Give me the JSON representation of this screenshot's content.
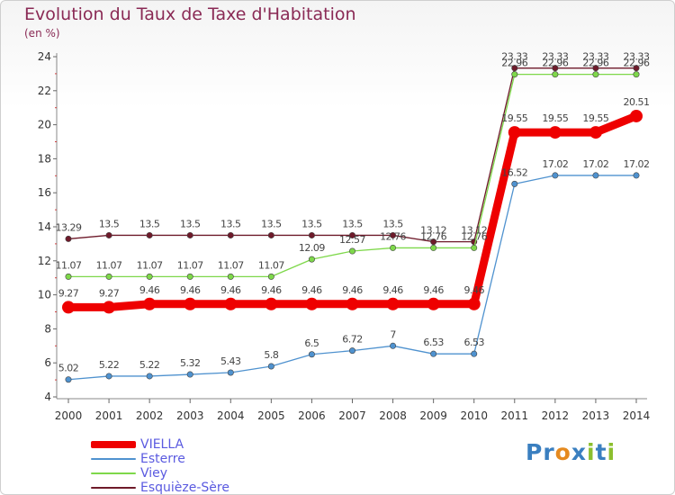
{
  "header": {
    "title": "Evolution du Taux de Taxe d'Habitation",
    "unit": "(en %)"
  },
  "brand": {
    "letters": [
      {
        "char": "P",
        "color": "#3a7fc0"
      },
      {
        "char": "r",
        "color": "#3a7fc0"
      },
      {
        "char": "o",
        "color": "#e58a1f"
      },
      {
        "char": "x",
        "color": "#3a7fc0"
      },
      {
        "char": "i",
        "color": "#8cbf2e"
      },
      {
        "char": "t",
        "color": "#3a7fc0"
      },
      {
        "char": "i",
        "color": "#8cbf2e"
      }
    ]
  },
  "chart_data": {
    "type": "line",
    "title": "Evolution du Taux de Taxe d'Habitation",
    "ylabel": "(en %)",
    "xlabel": "",
    "x": [
      2000,
      2001,
      2002,
      2003,
      2004,
      2005,
      2006,
      2007,
      2008,
      2009,
      2010,
      2011,
      2012,
      2013,
      2014
    ],
    "ylim": [
      4,
      24
    ],
    "yticks": [
      4,
      6,
      8,
      10,
      12,
      14,
      16,
      18,
      20,
      22,
      24
    ],
    "grid": false,
    "legend": "bottom-left",
    "series": [
      {
        "name": "Esquièze-Sère",
        "color": "#6e1a2a",
        "values": [
          13.29,
          13.5,
          13.5,
          13.5,
          13.5,
          13.5,
          13.5,
          13.5,
          13.5,
          13.12,
          13.12,
          23.33,
          23.33,
          23.33,
          23.33
        ]
      },
      {
        "name": "Viey",
        "color": "#7ed84a",
        "values": [
          11.07,
          11.07,
          11.07,
          11.07,
          11.07,
          11.07,
          12.09,
          12.57,
          12.76,
          12.76,
          12.76,
          22.96,
          22.96,
          22.96,
          22.96
        ]
      },
      {
        "name": "Esterre",
        "color": "#4f92cf",
        "values": [
          5.02,
          5.22,
          5.22,
          5.32,
          5.43,
          5.8,
          6.5,
          6.72,
          7,
          6.53,
          6.53,
          16.52,
          17.02,
          17.02,
          17.02
        ]
      },
      {
        "name": "VIELLA",
        "color": "#ee0000",
        "values": [
          9.27,
          9.27,
          9.46,
          9.46,
          9.46,
          9.46,
          9.46,
          9.46,
          9.46,
          9.46,
          9.46,
          19.55,
          19.55,
          19.55,
          20.51
        ]
      }
    ],
    "legend_order": [
      "VIELLA",
      "Esterre",
      "Viey",
      "Esquièze-Sère"
    ]
  }
}
